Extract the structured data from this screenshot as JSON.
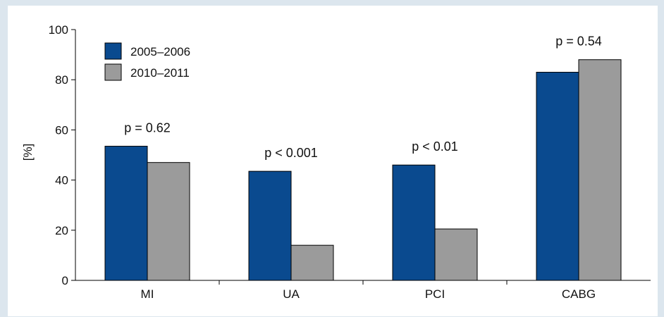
{
  "chart_data": {
    "type": "bar",
    "title": "",
    "xlabel": "",
    "ylabel": "[%]",
    "ylim": [
      0,
      100
    ],
    "yticks": [
      0,
      20,
      40,
      60,
      80,
      100
    ],
    "categories": [
      "MI",
      "UA",
      "PCI",
      "CABG"
    ],
    "series": [
      {
        "name": "2005–2006",
        "color": "#0a4a8f",
        "values": [
          53.5,
          43.5,
          46,
          83
        ]
      },
      {
        "name": "2010–2011",
        "color": "#9b9b9b",
        "values": [
          47,
          14,
          20.5,
          88
        ]
      }
    ],
    "annotations": [
      "p = 0.62",
      "p < 0.001",
      "p < 0.01",
      "p = 0.54"
    ],
    "grid": false,
    "legend_position": "top-left"
  }
}
